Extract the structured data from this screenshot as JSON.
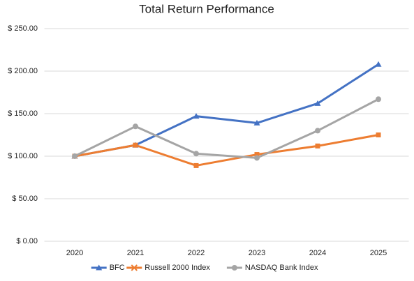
{
  "chart_data": {
    "type": "line",
    "title": "Total Return Performance",
    "categories": [
      "2020",
      "2021",
      "2022",
      "2023",
      "2024",
      "2025"
    ],
    "series": [
      {
        "name": "BFC",
        "color": "#4472c4",
        "values": [
          100,
          113,
          147,
          139,
          162,
          208
        ]
      },
      {
        "name": "Russell 2000 Index",
        "color": "#ed7d31",
        "values": [
          100,
          113,
          89,
          102,
          112,
          125
        ]
      },
      {
        "name": "NASDAQ Bank Index",
        "color": "#a5a5a5",
        "values": [
          100,
          135,
          103,
          98,
          130,
          167
        ]
      }
    ],
    "ylim": [
      0,
      250
    ],
    "yticks": [
      {
        "value": 0,
        "label": "$ 0.00"
      },
      {
        "value": 50,
        "label": "$ 50.00"
      },
      {
        "value": 100,
        "label": "$ 100.00"
      },
      {
        "value": 150,
        "label": "$ 150.00"
      },
      {
        "value": 200,
        "label": "$ 200.00"
      },
      {
        "value": 250,
        "label": "$ 250.00"
      }
    ],
    "grid": true,
    "legend": "bottom"
  }
}
